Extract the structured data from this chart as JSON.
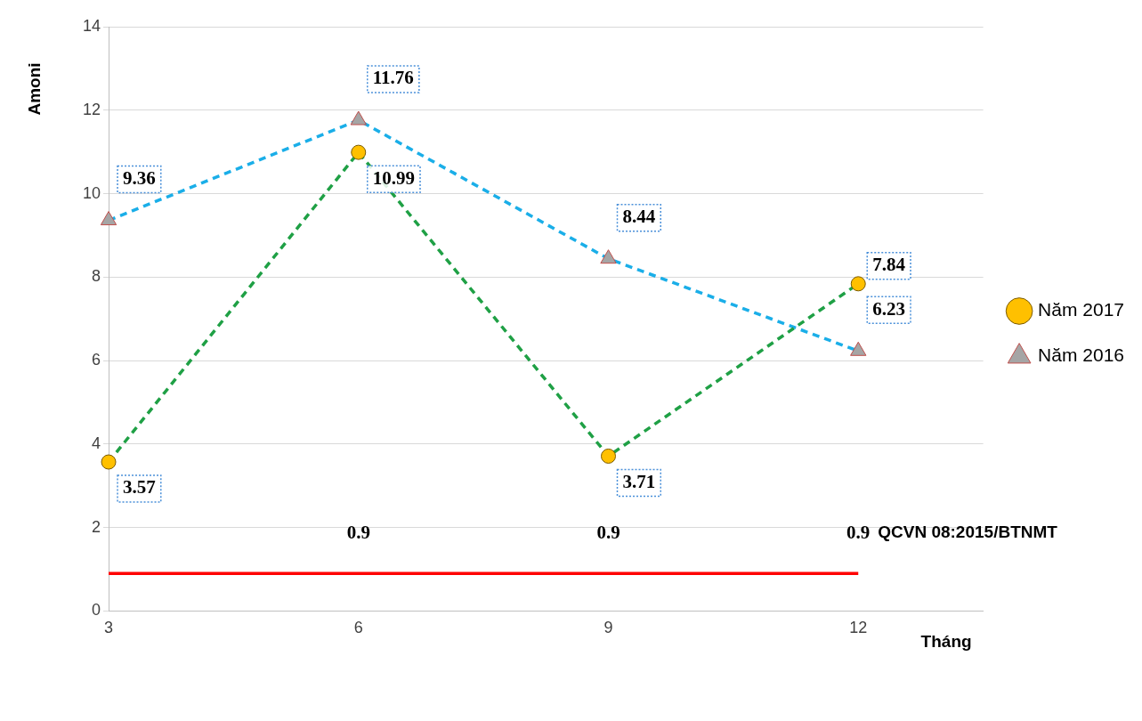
{
  "chart_data": {
    "type": "line",
    "xlabel": "Tháng",
    "ylabel": "Amoni",
    "x": [
      3,
      6,
      9,
      12
    ],
    "xlim": [
      3,
      13.5
    ],
    "xticks": [
      3,
      6,
      9,
      12
    ],
    "ylim": [
      0,
      14
    ],
    "yticks": [
      0,
      2,
      4,
      6,
      8,
      10,
      12,
      14
    ],
    "grid": "y",
    "legend": "right",
    "data_labels": true,
    "series": [
      {
        "name": "Năm 2017",
        "color": "#1fa045",
        "values": [
          3.57,
          10.99,
          3.71,
          7.84
        ],
        "marker": "circle",
        "line_style": "dashed"
      },
      {
        "name": "Năm 2016",
        "color": "#1aaee8",
        "values": [
          9.36,
          11.76,
          8.44,
          6.23
        ],
        "marker": "triangle",
        "line_style": "dashed"
      },
      {
        "name": "QCVN 08:2015/BTNMT",
        "color": "#ff0000",
        "values": [
          0.9,
          0.9,
          0.9,
          0.9
        ],
        "marker": "none",
        "line_style": "solid",
        "value_labels": [
          null,
          "0.9",
          "0.9",
          "0.9"
        ]
      }
    ]
  }
}
